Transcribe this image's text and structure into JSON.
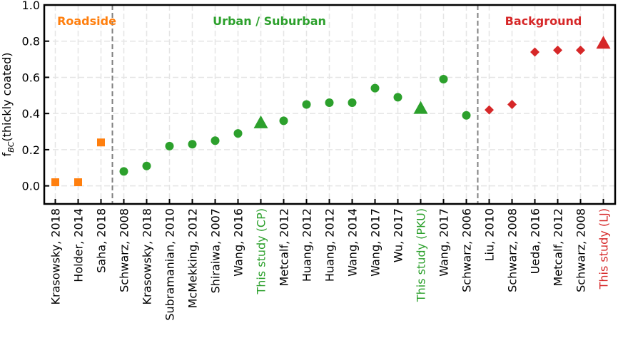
{
  "chart_data": {
    "type": "scatter",
    "title": "",
    "xlabel": "",
    "ylabel": "f",
    "ylabel_subscript": "BC",
    "ylabel_suffix": "(thickly coated)",
    "ylim": [
      -0.1,
      1.0
    ],
    "yticks": [
      0.0,
      0.2,
      0.4,
      0.6,
      0.8,
      1.0
    ],
    "ytick_labels": [
      "0.0",
      "0.2",
      "0.4",
      "0.6",
      "0.8",
      "1.0"
    ],
    "grid": true,
    "colors": {
      "roadside": "#ff7f0e",
      "urban": "#2ca02c",
      "background": "#d62728",
      "axis": "#000000",
      "divider": "#808080",
      "grid": "#e5e5e5"
    },
    "regions": [
      {
        "label": "Roadside",
        "color": "#ff7f0e",
        "center_index": 1
      },
      {
        "label": "Urban / Suburban",
        "color": "#2ca02c",
        "center_index": 9
      },
      {
        "label": "Background",
        "color": "#d62728",
        "center_index": 21
      }
    ],
    "dividers_after_index": [
      2,
      18
    ],
    "points": [
      {
        "label": "Krasowsky, 2018",
        "value": 0.02,
        "group": "roadside",
        "marker": "square",
        "highlight": false
      },
      {
        "label": "Holder, 2014",
        "value": 0.02,
        "group": "roadside",
        "marker": "square",
        "highlight": false
      },
      {
        "label": "Saha, 2018",
        "value": 0.24,
        "group": "roadside",
        "marker": "square",
        "highlight": false
      },
      {
        "label": "Schwarz, 2008",
        "value": 0.08,
        "group": "urban",
        "marker": "circle",
        "highlight": false
      },
      {
        "label": "Krasowsky, 2018",
        "value": 0.11,
        "group": "urban",
        "marker": "circle",
        "highlight": false
      },
      {
        "label": "Subramanian, 2010",
        "value": 0.22,
        "group": "urban",
        "marker": "circle",
        "highlight": false
      },
      {
        "label": "McMekking, 2012",
        "value": 0.23,
        "group": "urban",
        "marker": "circle",
        "highlight": false
      },
      {
        "label": "Shiraiwa, 2007",
        "value": 0.25,
        "group": "urban",
        "marker": "circle",
        "highlight": false
      },
      {
        "label": "Wang, 2016",
        "value": 0.29,
        "group": "urban",
        "marker": "circle",
        "highlight": false
      },
      {
        "label": "This study (CP)",
        "value": 0.35,
        "group": "urban",
        "marker": "triangle",
        "highlight": true
      },
      {
        "label": "Metcalf, 2012",
        "value": 0.36,
        "group": "urban",
        "marker": "circle",
        "highlight": false
      },
      {
        "label": "Huang, 2012",
        "value": 0.45,
        "group": "urban",
        "marker": "circle",
        "highlight": false
      },
      {
        "label": "Huang, 2012",
        "value": 0.46,
        "group": "urban",
        "marker": "circle",
        "highlight": false
      },
      {
        "label": "Wang, 2014",
        "value": 0.46,
        "group": "urban",
        "marker": "circle",
        "highlight": false
      },
      {
        "label": "Wang, 2017",
        "value": 0.54,
        "group": "urban",
        "marker": "circle",
        "highlight": false
      },
      {
        "label": "Wu, 2017",
        "value": 0.49,
        "group": "urban",
        "marker": "circle",
        "highlight": false
      },
      {
        "label": "This study (PKU)",
        "value": 0.43,
        "group": "urban",
        "marker": "triangle",
        "highlight": true
      },
      {
        "label": "Wang, 2017",
        "value": 0.59,
        "group": "urban",
        "marker": "circle",
        "highlight": false
      },
      {
        "label": "Schwarz, 2006",
        "value": 0.39,
        "group": "urban",
        "marker": "circle",
        "highlight": false
      },
      {
        "label": "Liu, 2010",
        "value": 0.42,
        "group": "background",
        "marker": "diamond",
        "highlight": false
      },
      {
        "label": "Schwarz, 2008",
        "value": 0.45,
        "group": "background",
        "marker": "diamond",
        "highlight": false
      },
      {
        "label": "Ueda, 2016",
        "value": 0.74,
        "group": "background",
        "marker": "diamond",
        "highlight": false
      },
      {
        "label": "Metcalf, 2012",
        "value": 0.75,
        "group": "background",
        "marker": "diamond",
        "highlight": false
      },
      {
        "label": "Schwarz, 2008",
        "value": 0.75,
        "group": "background",
        "marker": "diamond",
        "highlight": false
      },
      {
        "label": "This study (LJ)",
        "value": 0.79,
        "group": "background",
        "marker": "triangle",
        "highlight": true
      }
    ]
  }
}
